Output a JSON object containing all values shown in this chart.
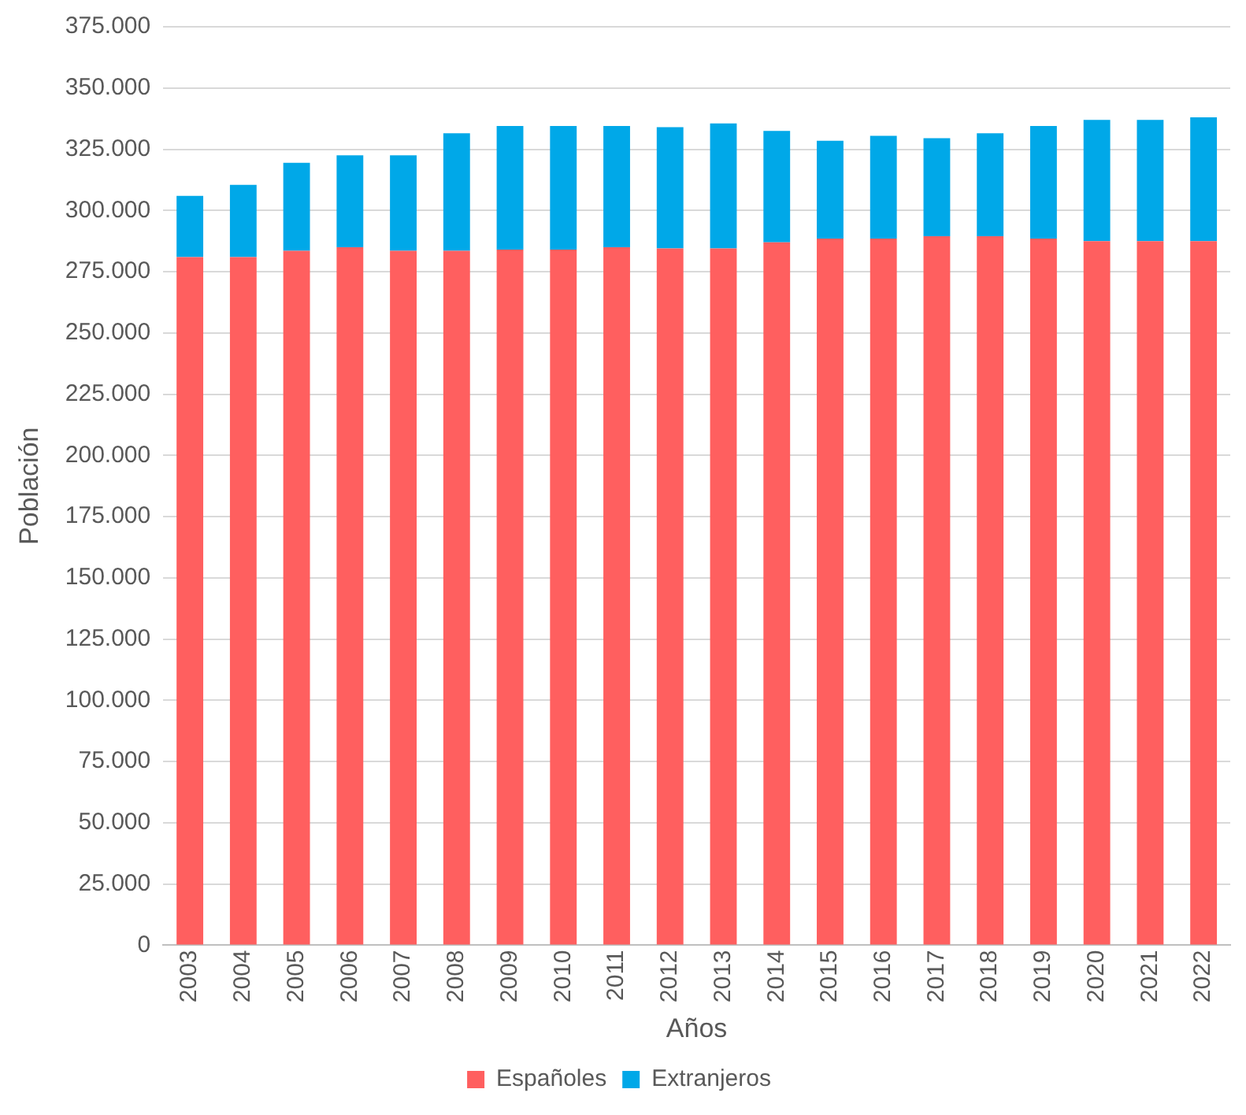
{
  "chart_data": {
    "type": "bar",
    "stacked": true,
    "xlabel": "Años",
    "ylabel": "Población",
    "categories": [
      "2003",
      "2004",
      "2005",
      "2006",
      "2007",
      "2008",
      "2009",
      "2010",
      "2011",
      "2012",
      "2013",
      "2014",
      "2015",
      "2016",
      "2017",
      "2018",
      "2019",
      "2020",
      "2021",
      "2022"
    ],
    "series": [
      {
        "name": "Españoles",
        "color": "#ff5f5f",
        "values": [
          281000,
          281000,
          283500,
          285000,
          283500,
          283500,
          284000,
          284000,
          285000,
          284500,
          284500,
          287000,
          288500,
          288500,
          289500,
          289500,
          288500,
          287500,
          287500,
          287500
        ]
      },
      {
        "name": "Extranjeros",
        "color": "#00a8e8",
        "values": [
          25000,
          29500,
          36000,
          37500,
          39000,
          48000,
          50500,
          50500,
          49500,
          49500,
          51000,
          45500,
          40000,
          42000,
          40000,
          42000,
          46000,
          49500,
          49500,
          50500
        ]
      }
    ],
    "ylim": [
      0,
      375000
    ],
    "yticks": [
      {
        "value": 0,
        "label": "0"
      },
      {
        "value": 25000,
        "label": "25.000"
      },
      {
        "value": 50000,
        "label": "50.000"
      },
      {
        "value": 75000,
        "label": "75.000"
      },
      {
        "value": 100000,
        "label": "100.000"
      },
      {
        "value": 125000,
        "label": "125.000"
      },
      {
        "value": 150000,
        "label": "150.000"
      },
      {
        "value": 175000,
        "label": "175.000"
      },
      {
        "value": 200000,
        "label": "200.000"
      },
      {
        "value": 225000,
        "label": "225.000"
      },
      {
        "value": 250000,
        "label": "250.000"
      },
      {
        "value": 275000,
        "label": "275.000"
      },
      {
        "value": 300000,
        "label": "300.000"
      },
      {
        "value": 325000,
        "label": "325.000"
      },
      {
        "value": 350000,
        "label": "350.000"
      },
      {
        "value": 375000,
        "label": "375.000"
      }
    ],
    "grid": "y",
    "legend": "bottom"
  }
}
